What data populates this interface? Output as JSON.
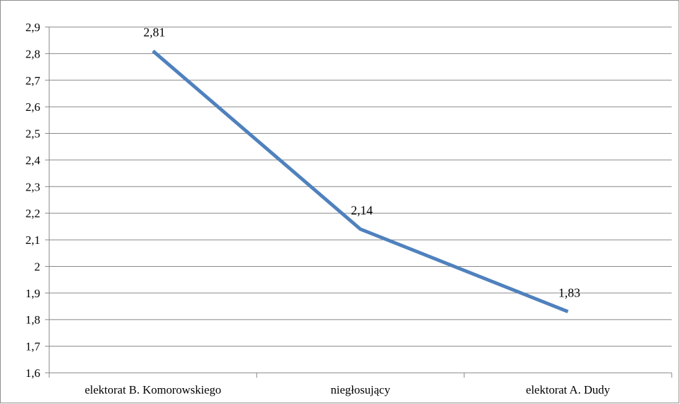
{
  "chart_data": {
    "type": "line",
    "title": "",
    "xlabel": "",
    "ylabel": "",
    "categories": [
      "elektorat B. Komorowskiego",
      "niegłosujący",
      "elektorat A. Dudy"
    ],
    "series": [
      {
        "values": [
          2.81,
          2.14,
          1.83
        ],
        "data_labels": [
          "2,81",
          "2,14",
          "1,83"
        ],
        "color": "#4f81bd"
      }
    ],
    "ylim": [
      1.6,
      2.9
    ],
    "yticks": [
      1.6,
      1.7,
      1.8,
      1.9,
      2.0,
      2.1,
      2.2,
      2.3,
      2.4,
      2.5,
      2.6,
      2.7,
      2.8,
      2.9
    ],
    "ytick_labels": [
      "1,6",
      "1,7",
      "1,8",
      "1,9",
      "2",
      "2,1",
      "2,2",
      "2,3",
      "2,4",
      "2,5",
      "2,6",
      "2,7",
      "2,8",
      "2,9"
    ],
    "grid": true,
    "legend": "none",
    "gridline_color": "#868686",
    "axis_color": "#868686"
  }
}
